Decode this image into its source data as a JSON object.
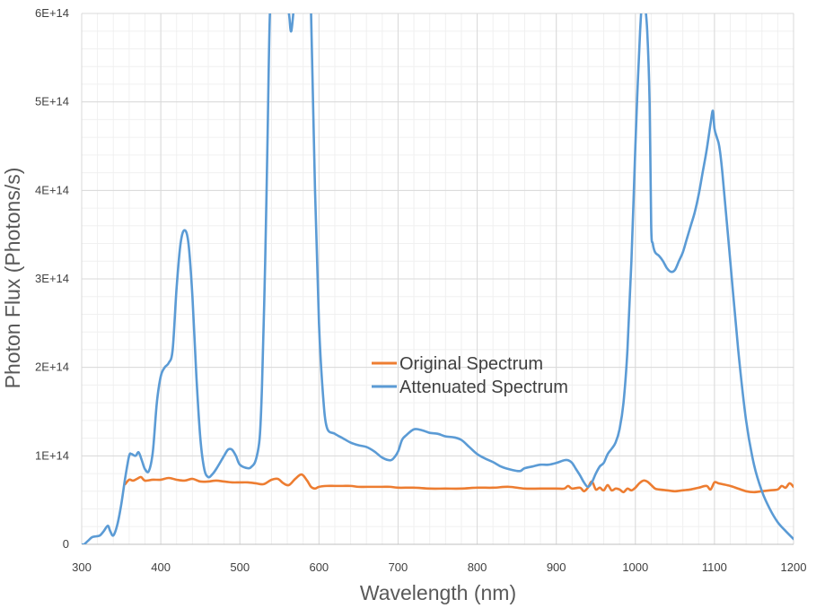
{
  "chart_data": {
    "type": "line",
    "title": "",
    "xlabel": "Wavelength (nm)",
    "ylabel": "Photon Flux (Photons/s)",
    "xlim": [
      300,
      1200
    ],
    "ylim": [
      0,
      600000000000000
    ],
    "x_ticks": [
      300,
      400,
      500,
      600,
      700,
      800,
      900,
      1000,
      1100,
      1200
    ],
    "x_tick_labels": [
      "300",
      "400",
      "500",
      "600",
      "700",
      "800",
      "900",
      "1000",
      "1100",
      "1200"
    ],
    "y_ticks": [
      0,
      100000000000000,
      200000000000000,
      300000000000000,
      400000000000000,
      500000000000000,
      600000000000000
    ],
    "y_tick_labels": [
      "0",
      "1E+14",
      "2E+14",
      "3E+14",
      "4E+14",
      "5E+14",
      "6E+14"
    ],
    "grid": true,
    "minor_grid": true,
    "legend_position": "center",
    "series": [
      {
        "name": "Original Spectrum",
        "color": "#ED7D31",
        "x": [
          355,
          360,
          365,
          370,
          375,
          380,
          390,
          400,
          410,
          420,
          430,
          440,
          450,
          460,
          470,
          480,
          490,
          500,
          510,
          520,
          530,
          540,
          548,
          555,
          562,
          570,
          578,
          585,
          590,
          595,
          600,
          610,
          620,
          630,
          640,
          650,
          660,
          670,
          680,
          690,
          700,
          720,
          740,
          760,
          780,
          800,
          820,
          840,
          860,
          880,
          900,
          910,
          915,
          920,
          930,
          935,
          940,
          945,
          950,
          955,
          960,
          965,
          970,
          975,
          980,
          985,
          990,
          995,
          1000,
          1005,
          1010,
          1015,
          1020,
          1025,
          1030,
          1040,
          1050,
          1060,
          1070,
          1080,
          1090,
          1095,
          1100,
          1105,
          1110,
          1120,
          1130,
          1140,
          1150,
          1160,
          1170,
          1180,
          1185,
          1190,
          1195,
          1200
        ],
        "y": [
          68000000000000.0,
          73000000000000.0,
          72000000000000.0,
          74000000000000.0,
          76000000000000.0,
          72000000000000.0,
          73000000000000.0,
          73000000000000.0,
          75000000000000.0,
          73000000000000.0,
          72000000000000.0,
          74000000000000.0,
          71000000000000.0,
          71000000000000.0,
          72000000000000.0,
          71000000000000.0,
          70000000000000.0,
          70000000000000.0,
          70000000000000.0,
          69000000000000.0,
          68000000000000.0,
          73000000000000.0,
          74000000000000.0,
          69000000000000.0,
          67000000000000.0,
          74000000000000.0,
          79000000000000.0,
          72000000000000.0,
          65000000000000.0,
          63000000000000.0,
          65000000000000.0,
          66000000000000.0,
          66000000000000.0,
          66000000000000.0,
          66000000000000.0,
          65000000000000.0,
          65000000000000.0,
          65000000000000.0,
          65000000000000.0,
          65000000000000.0,
          64000000000000.0,
          64000000000000.0,
          63000000000000.0,
          63000000000000.0,
          63000000000000.0,
          64000000000000.0,
          64000000000000.0,
          65000000000000.0,
          63000000000000.0,
          63000000000000.0,
          63000000000000.0,
          63000000000000.0,
          66000000000000.0,
          63000000000000.0,
          64000000000000.0,
          60000000000000.0,
          64000000000000.0,
          71000000000000.0,
          62000000000000.0,
          64000000000000.0,
          61000000000000.0,
          67000000000000.0,
          61000000000000.0,
          63000000000000.0,
          62000000000000.0,
          59000000000000.0,
          63000000000000.0,
          61000000000000.0,
          64000000000000.0,
          69000000000000.0,
          72000000000000.0,
          71000000000000.0,
          67000000000000.0,
          63000000000000.0,
          62000000000000.0,
          61000000000000.0,
          60000000000000.0,
          61000000000000.0,
          62000000000000.0,
          64000000000000.0,
          66000000000000.0,
          62000000000000.0,
          70000000000000.0,
          69000000000000.0,
          68000000000000.0,
          66000000000000.0,
          63000000000000.0,
          60000000000000.0,
          59000000000000.0,
          60000000000000.0,
          61000000000000.0,
          62000000000000.0,
          66000000000000.0,
          64000000000000.0,
          69000000000000.0,
          65000000000000.0
        ]
      },
      {
        "name": "Attenuated Spectrum",
        "color": "#5B9BD5",
        "x": [
          300,
          303,
          308,
          313,
          318,
          323,
          328,
          333,
          336,
          340,
          345,
          350,
          355,
          360,
          363,
          368,
          372,
          376,
          380,
          385,
          390,
          395,
          400,
          405,
          410,
          415,
          420,
          425,
          430,
          435,
          440,
          445,
          450,
          455,
          460,
          465,
          470,
          480,
          485,
          490,
          495,
          500,
          510,
          515,
          520,
          525,
          528,
          532,
          535,
          538,
          542,
          546,
          550,
          555,
          558,
          562,
          565,
          570,
          575,
          580,
          585,
          588,
          590,
          595,
          600,
          605,
          610,
          620,
          630,
          640,
          650,
          660,
          670,
          680,
          690,
          695,
          700,
          705,
          710,
          720,
          730,
          740,
          750,
          760,
          770,
          780,
          790,
          800,
          810,
          820,
          830,
          840,
          850,
          855,
          860,
          870,
          880,
          890,
          900,
          910,
          915,
          920,
          925,
          930,
          935,
          940,
          945,
          950,
          955,
          960,
          965,
          970,
          975,
          980,
          985,
          990,
          995,
          1000,
          1003,
          1006,
          1009,
          1012,
          1015,
          1018,
          1020,
          1022,
          1025,
          1030,
          1035,
          1040,
          1045,
          1050,
          1055,
          1060,
          1065,
          1070,
          1075,
          1080,
          1085,
          1090,
          1095,
          1098,
          1100,
          1103,
          1106,
          1110,
          1120,
          1130,
          1140,
          1150,
          1160,
          1170,
          1180,
          1190,
          1200
        ],
        "y": [
          0,
          0,
          4000000000000.0,
          8000000000000.0,
          9000000000000.0,
          10000000000000.0,
          15000000000000.0,
          21000000000000.0,
          15000000000000.0,
          10000000000000.0,
          22000000000000.0,
          45000000000000.0,
          75000000000000.0,
          100000000000000.0,
          102000000000000.0,
          100000000000000.0,
          104000000000000.0,
          95000000000000.0,
          85000000000000.0,
          83000000000000.0,
          105000000000000.0,
          160000000000000.0,
          190000000000000.0,
          200000000000000.0,
          205000000000000.0,
          220000000000000.0,
          290000000000000.0,
          340000000000000.0,
          355000000000000.0,
          340000000000000.0,
          280000000000000.0,
          190000000000000.0,
          120000000000000.0,
          85000000000000.0,
          76000000000000.0,
          79000000000000.0,
          85000000000000.0,
          100000000000000.0,
          107000000000000.0,
          107000000000000.0,
          100000000000000.0,
          90000000000000.0,
          86000000000000.0,
          88000000000000.0,
          95000000000000.0,
          120000000000000.0,
          180000000000000.0,
          320000000000000.0,
          460000000000000.0,
          600000000000000.0,
          620000000000000.0,
          620000000000000.0,
          620000000000000.0,
          620000000000000.0,
          610000000000000.0,
          600000000000000.0,
          580000000000000.0,
          620000000000000.0,
          620000000000000.0,
          620000000000000.0,
          620000000000000.0,
          620000000000000.0,
          600000000000000.0,
          400000000000000.0,
          250000000000000.0,
          170000000000000.0,
          132000000000000.0,
          125000000000000.0,
          120000000000000.0,
          115000000000000.0,
          112000000000000.0,
          110000000000000.0,
          105000000000000.0,
          98000000000000.0,
          95000000000000.0,
          98000000000000.0,
          105000000000000.0,
          118000000000000.0,
          123000000000000.0,
          130000000000000.0,
          129000000000000.0,
          126000000000000.0,
          125000000000000.0,
          122000000000000.0,
          121000000000000.0,
          118000000000000.0,
          110000000000000.0,
          102000000000000.0,
          97000000000000.0,
          93000000000000.0,
          88000000000000.0,
          85000000000000.0,
          83000000000000.0,
          83000000000000.0,
          86000000000000.0,
          88000000000000.0,
          90000000000000.0,
          90000000000000.0,
          92000000000000.0,
          95000000000000.0,
          95000000000000.0,
          92000000000000.0,
          85000000000000.0,
          78000000000000.0,
          70000000000000.0,
          65000000000000.0,
          70000000000000.0,
          80000000000000.0,
          88000000000000.0,
          92000000000000.0,
          102000000000000.0,
          108000000000000.0,
          115000000000000.0,
          130000000000000.0,
          160000000000000.0,
          220000000000000.0,
          320000000000000.0,
          450000000000000.0,
          520000000000000.0,
          580000000000000.0,
          620000000000000.0,
          610000000000000.0,
          580000000000000.0,
          500000000000000.0,
          360000000000000.0,
          340000000000000.0,
          330000000000000.0,
          326000000000000.0,
          320000000000000.0,
          312000000000000.0,
          308000000000000.0,
          310000000000000.0,
          320000000000000.0,
          330000000000000.0,
          345000000000000.0,
          360000000000000.0,
          375000000000000.0,
          395000000000000.0,
          420000000000000.0,
          445000000000000.0,
          475000000000000.0,
          490000000000000.0,
          470000000000000.0,
          460000000000000.0,
          450000000000000.0,
          420000000000000.0,
          320000000000000.0,
          220000000000000.0,
          140000000000000.0,
          90000000000000.0,
          60000000000000.0,
          40000000000000.0,
          25000000000000.0,
          15000000000000.0,
          6000000000000.0
        ]
      }
    ]
  }
}
